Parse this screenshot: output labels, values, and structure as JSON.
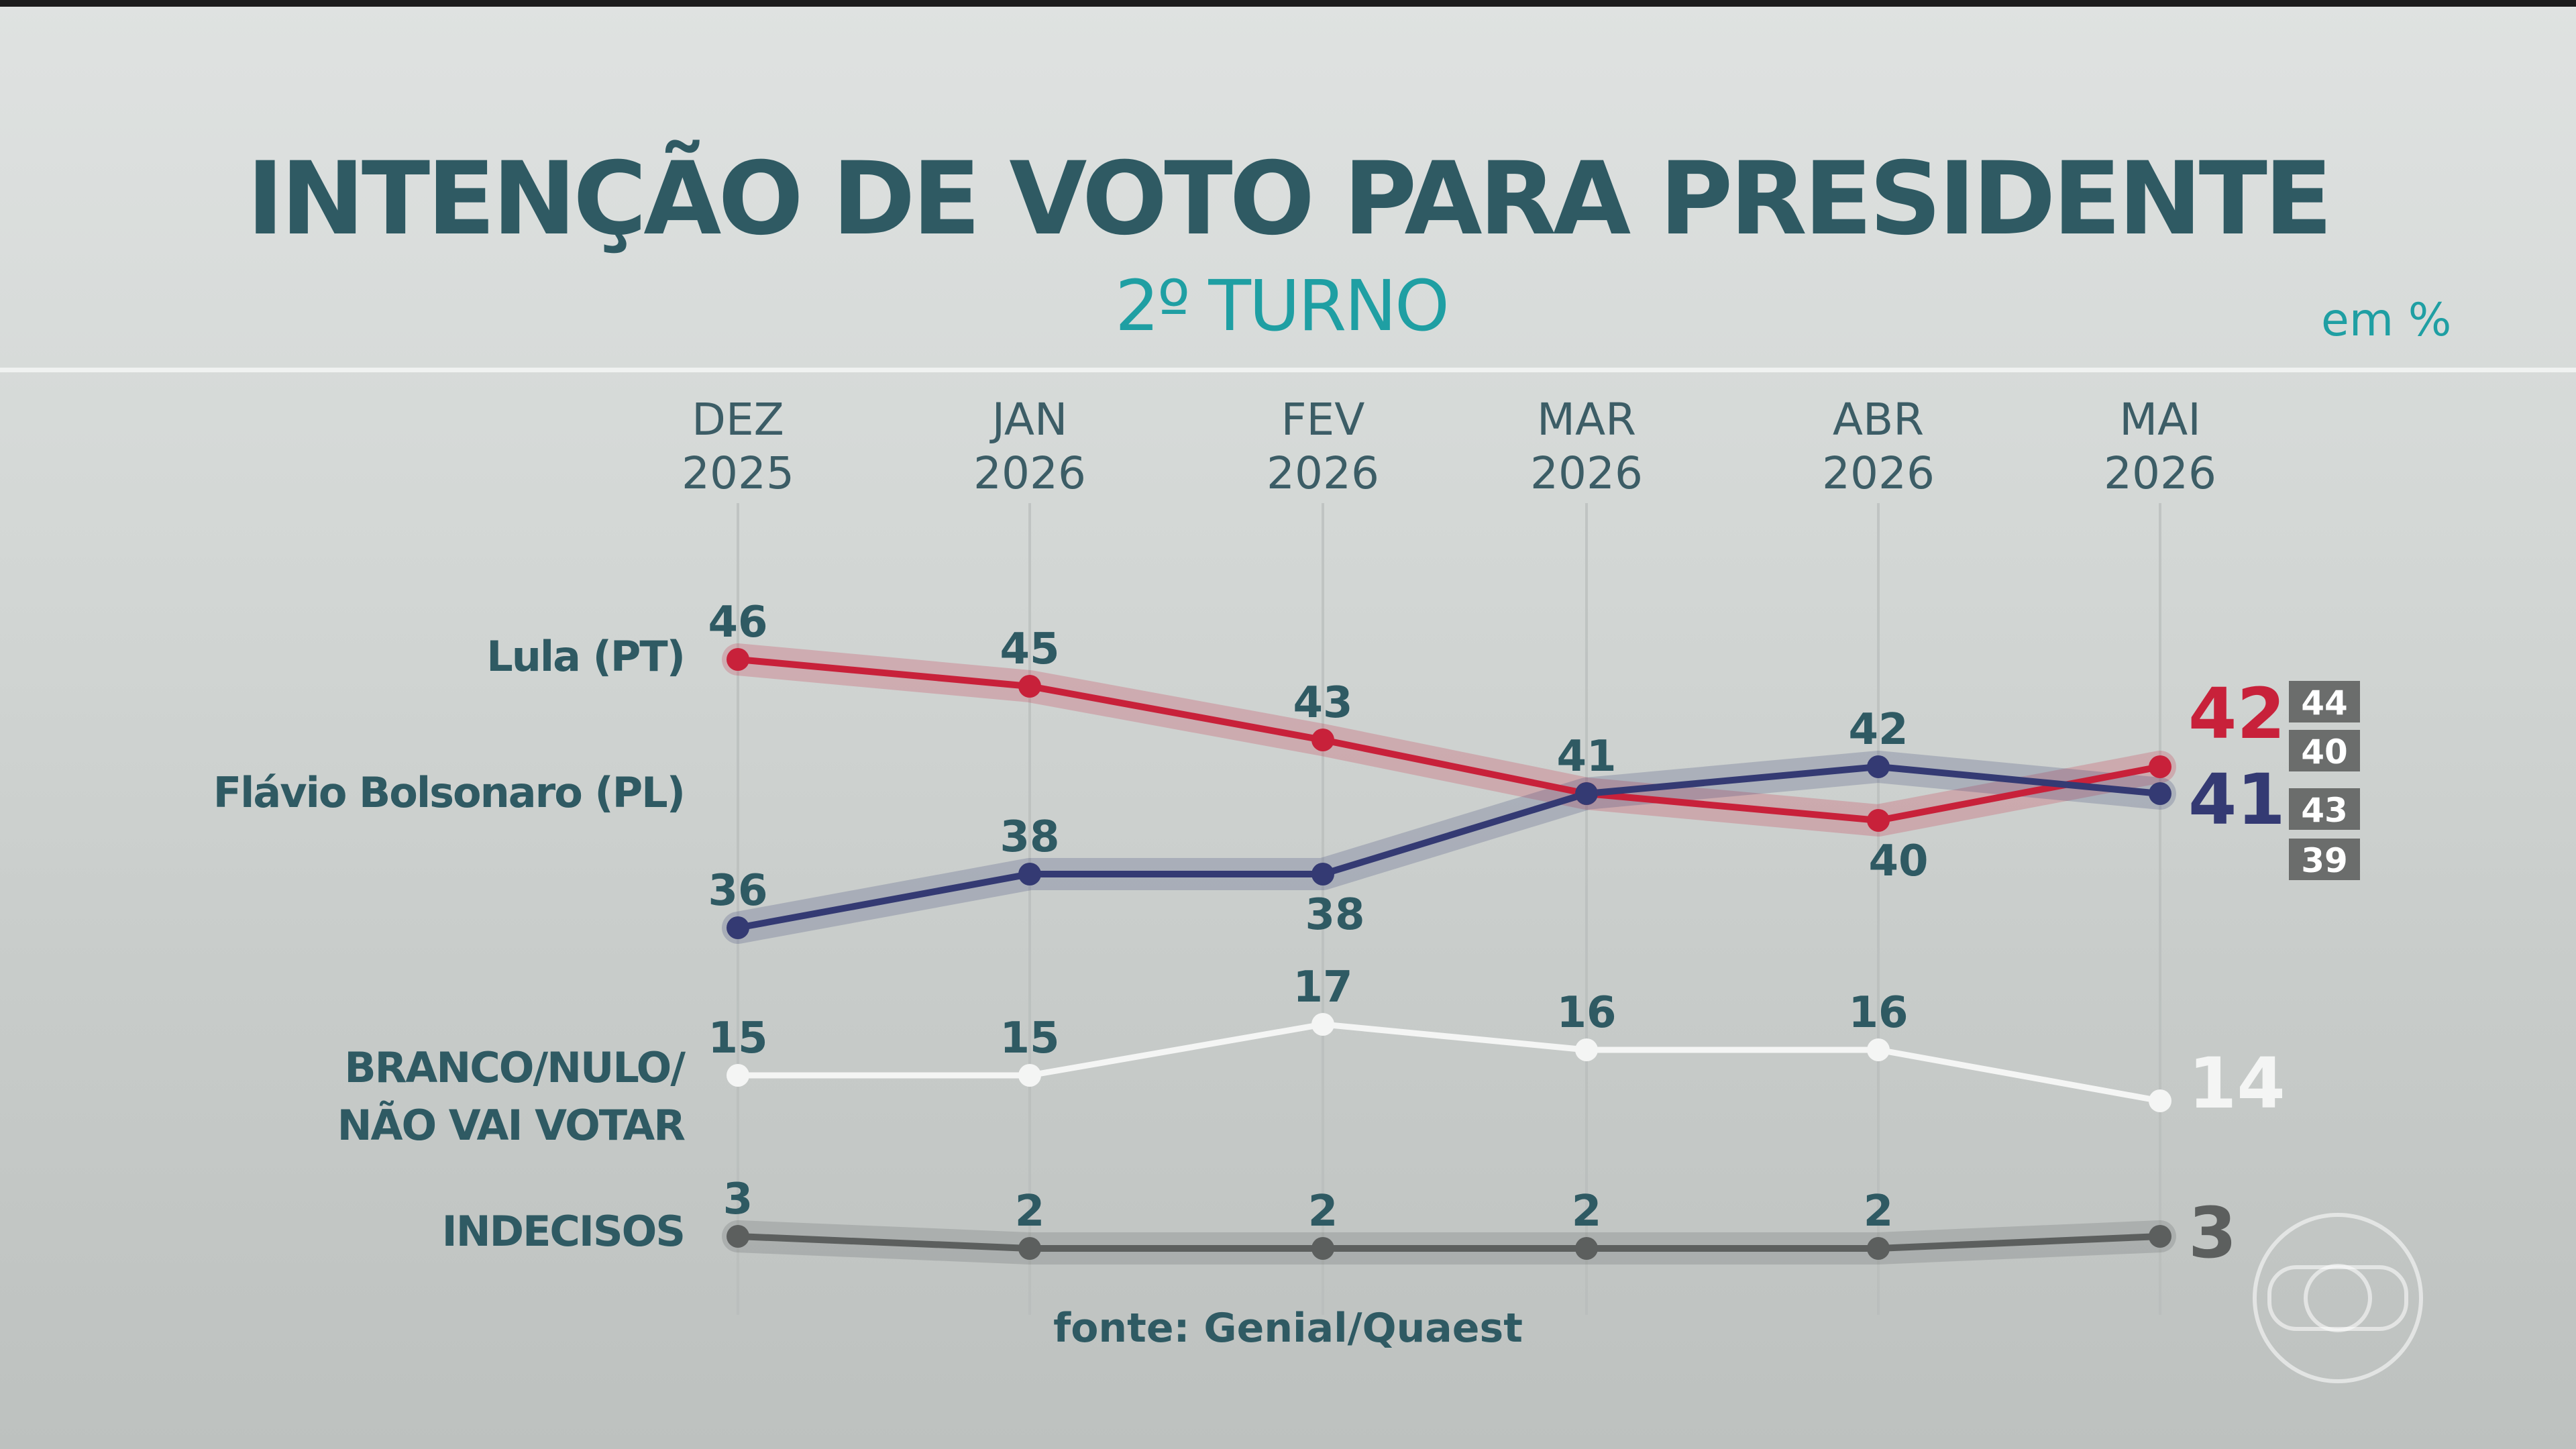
{
  "header": {
    "title": "INTENÇÃO DE VOTO PARA PRESIDENTE",
    "subtitle": "2º TURNO",
    "unit": "em %"
  },
  "source": "fonte: Genial/Quaest",
  "colors": {
    "lula": "#c8213a",
    "flavio": "#343a73",
    "branco": "#f4f5f4",
    "indecisos": "#5c5f5e",
    "text": "#2f5a63",
    "accent": "#1f9fa3"
  },
  "chart_data": {
    "type": "line",
    "categories": [
      [
        "DEZ",
        "2025"
      ],
      [
        "JAN",
        "2026"
      ],
      [
        "FEV",
        "2026"
      ],
      [
        "MAR",
        "2026"
      ],
      [
        "ABR",
        "2026"
      ],
      [
        "MAI",
        "2026"
      ]
    ],
    "series": [
      {
        "name": "Lula (PT)",
        "key": "lula",
        "values": [
          46,
          45,
          43,
          41,
          40,
          42
        ],
        "labels": [
          "46",
          "45",
          "43",
          "41",
          "40",
          "42"
        ],
        "final_label": "42",
        "margin": [
          "44",
          "40"
        ]
      },
      {
        "name": "Flávio Bolsonaro (PL)",
        "key": "flavio",
        "values": [
          36,
          38,
          38,
          41,
          42,
          41
        ],
        "labels": [
          "36",
          "38",
          "38",
          "",
          "42",
          "41"
        ],
        "final_label": "41",
        "margin": [
          "43",
          "39"
        ]
      },
      {
        "name": "BRANCO/NULO/ NÃO VAI VOTAR",
        "key": "branco",
        "values": [
          15,
          15,
          17,
          16,
          16,
          14
        ],
        "labels": [
          "15",
          "15",
          "17",
          "16",
          "16",
          "14"
        ],
        "final_label": "14"
      },
      {
        "name": "INDECISOS",
        "key": "indecisos",
        "values": [
          3,
          2,
          2,
          2,
          2,
          3
        ],
        "labels": [
          "3",
          "2",
          "2",
          "2",
          "2",
          "3"
        ],
        "final_label": "3"
      }
    ]
  }
}
